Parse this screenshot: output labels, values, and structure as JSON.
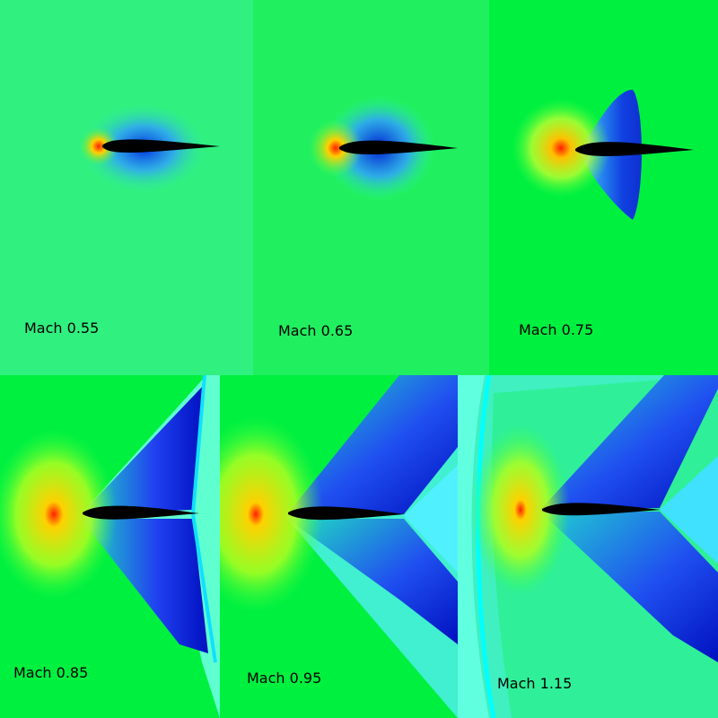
{
  "panels": [
    {
      "label": "Mach 0.55"
    },
    {
      "label": "Mach 0.65"
    },
    {
      "label": "Mach 0.75"
    },
    {
      "label": "Mach 0.85"
    },
    {
      "label": "Mach 0.95"
    },
    {
      "label": "Mach 1.15"
    }
  ],
  "colors": {
    "freestream": "#10f040",
    "stagnation": "#ff2000",
    "compression": "#f0ff00",
    "expansion": "#0010d0",
    "shock_tint": "#00ffff",
    "airfoil": "#000000"
  }
}
